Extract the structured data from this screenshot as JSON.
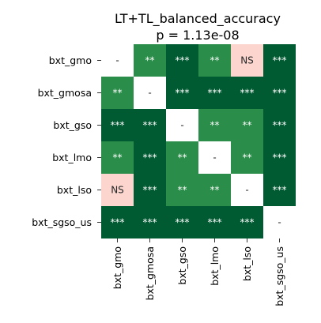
{
  "chart_data": {
    "type": "heatmap",
    "title": "LT+TL_balanced_accuracy",
    "subtitle": "p = 1.13e-08",
    "rows": [
      "bxt_gmo",
      "bxt_gmosa",
      "bxt_gso",
      "bxt_lmo",
      "bxt_lso",
      "bxt_sgso_us"
    ],
    "columns": [
      "bxt_gmo",
      "bxt_gmosa",
      "bxt_gso",
      "bxt_lmo",
      "bxt_lso",
      "bxt_sgso_us"
    ],
    "cells": [
      [
        "-",
        "**",
        "***",
        "**",
        "NS",
        "***"
      ],
      [
        "**",
        "-",
        "***",
        "***",
        "***",
        "***"
      ],
      [
        "***",
        "***",
        "-",
        "**",
        "**",
        "***"
      ],
      [
        "**",
        "***",
        "**",
        "-",
        "**",
        "***"
      ],
      [
        "NS",
        "***",
        "**",
        "**",
        "-",
        "***"
      ],
      [
        "***",
        "***",
        "***",
        "***",
        "***",
        "-"
      ]
    ],
    "colors": {
      "***": "#005a32",
      "**": "#2a8d4a",
      "*": "#6bbf6f",
      "NS": "#fbd5ce",
      "-": "#ffffff"
    },
    "label_colors": {
      "***": "#ffffff",
      "**": "#ffffff",
      "*": "#ffffff",
      "NS": "#262626",
      "-": "#262626"
    }
  }
}
